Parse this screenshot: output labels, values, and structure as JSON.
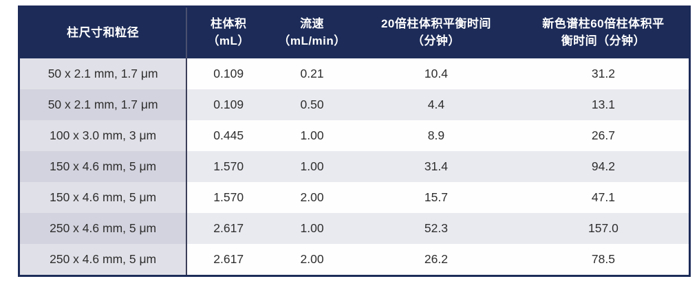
{
  "table": {
    "headers": {
      "col1": "柱尺寸和粒径",
      "col2": "柱体积\n（mL）",
      "col3": "流速\n（mL/min）",
      "col4": "20倍柱体积平衡时间\n（分钟）",
      "col5": "新色谱柱60倍柱体积平\n衡时间（分钟）"
    },
    "rows": [
      [
        "50 x 2.1 mm, 1.7 μm",
        "0.109",
        "0.21",
        "10.4",
        "31.2"
      ],
      [
        "50 x 2.1 mm, 1.7 μm",
        "0.109",
        "0.50",
        "4.4",
        "13.1"
      ],
      [
        "100 x 3.0 mm, 3 μm",
        "0.445",
        "1.00",
        "8.9",
        "26.7"
      ],
      [
        "150 x 4.6 mm, 5 μm",
        "1.570",
        "1.00",
        "31.4",
        "94.2"
      ],
      [
        "150 x 4.6 mm, 5 μm",
        "1.570",
        "2.00",
        "15.7",
        "47.1"
      ],
      [
        "250 x 4.6 mm, 5 μm",
        "2.617",
        "1.00",
        "52.3",
        "157.0"
      ],
      [
        "250 x 4.6 mm, 5 μm",
        "2.617",
        "2.00",
        "26.2",
        "78.5"
      ]
    ]
  },
  "colors": {
    "header_bg": "#1c2b58",
    "header_text": "#ffffff",
    "row_stripe": "#e9eaf0",
    "first_col_light": "#e0e0e8",
    "first_col_dark": "#d3d3df",
    "divider": "#3b3f58"
  }
}
